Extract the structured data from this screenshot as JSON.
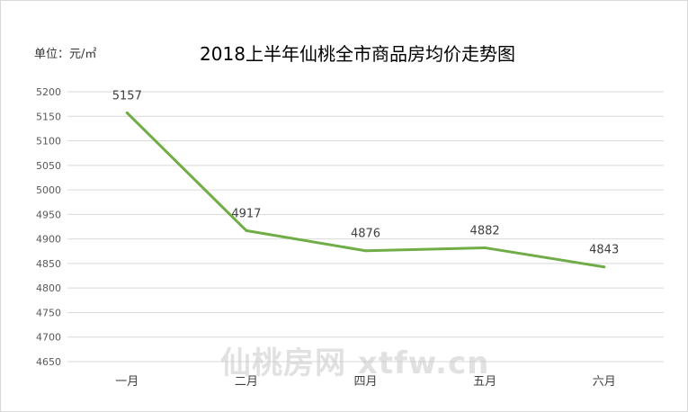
{
  "chart_data": {
    "type": "line",
    "title": "2018上半年仙桃全市商品房均价走势图",
    "unit_label": "单位：元/㎡",
    "categories": [
      "一月",
      "二月",
      "四月",
      "五月",
      "六月"
    ],
    "series": [
      {
        "values": [
          5157,
          4917,
          4876,
          4882,
          4843
        ]
      }
    ],
    "ylim": [
      4650,
      5200
    ],
    "yticks": [
      5200,
      5150,
      5100,
      5050,
      5000,
      4950,
      4900,
      4850,
      4800,
      4750,
      4700,
      4650
    ],
    "grid": true,
    "line_color": "#70ad47"
  },
  "watermark": "仙桃房网 xtfw.cn"
}
